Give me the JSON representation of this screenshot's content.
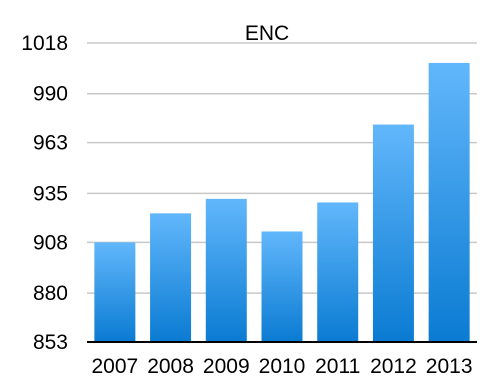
{
  "chart_data": {
    "type": "bar",
    "title": "ENC",
    "xlabel": "",
    "ylabel": "",
    "categories": [
      "2007",
      "2008",
      "2009",
      "2010",
      "2011",
      "2012",
      "2013"
    ],
    "values": [
      908,
      924,
      932,
      914,
      930,
      973,
      1007
    ],
    "ylim": [
      853,
      1018
    ],
    "yticks": [
      "1018",
      "990",
      "963",
      "935",
      "908",
      "880",
      "853"
    ],
    "grid": true,
    "legend": "none",
    "colors": {
      "bar_top": "#62b7fb",
      "bar_bottom": "#0a7bd2",
      "grid": "#c8c8c8",
      "axis": "#000000"
    }
  }
}
